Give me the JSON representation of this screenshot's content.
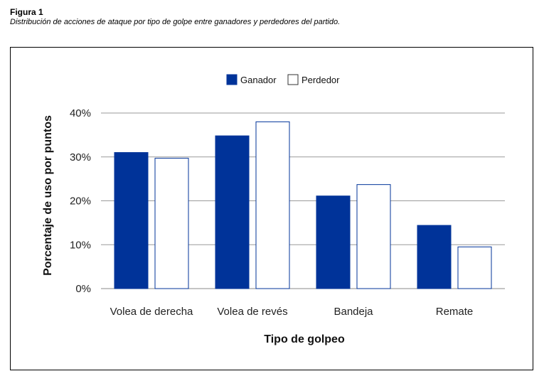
{
  "figure": {
    "label": "Figura 1",
    "caption": "Distribución de acciones de ataque por tipo de golpe entre ganadores y perdedores del partido."
  },
  "chart_data": {
    "type": "bar",
    "categories": [
      "Volea de derecha",
      "Volea de revés",
      "Bandeja",
      "Remate"
    ],
    "series": [
      {
        "name": "Ganador",
        "values": [
          31,
          34.8,
          21.1,
          14.4
        ],
        "color": "#003399",
        "fill_style": "solid"
      },
      {
        "name": "Perdedor",
        "values": [
          29.7,
          38,
          23.7,
          9.5
        ],
        "color": "#ffffff",
        "fill_style": "outline"
      }
    ],
    "xlabel": "Tipo de golpeo",
    "ylabel": "Porcentaje de uso por puntos",
    "ylim": [
      0,
      40
    ],
    "yticks": [
      "0%",
      "10%",
      "20%",
      "30%",
      "40%"
    ],
    "grid": true,
    "legend_position": "top-center"
  }
}
